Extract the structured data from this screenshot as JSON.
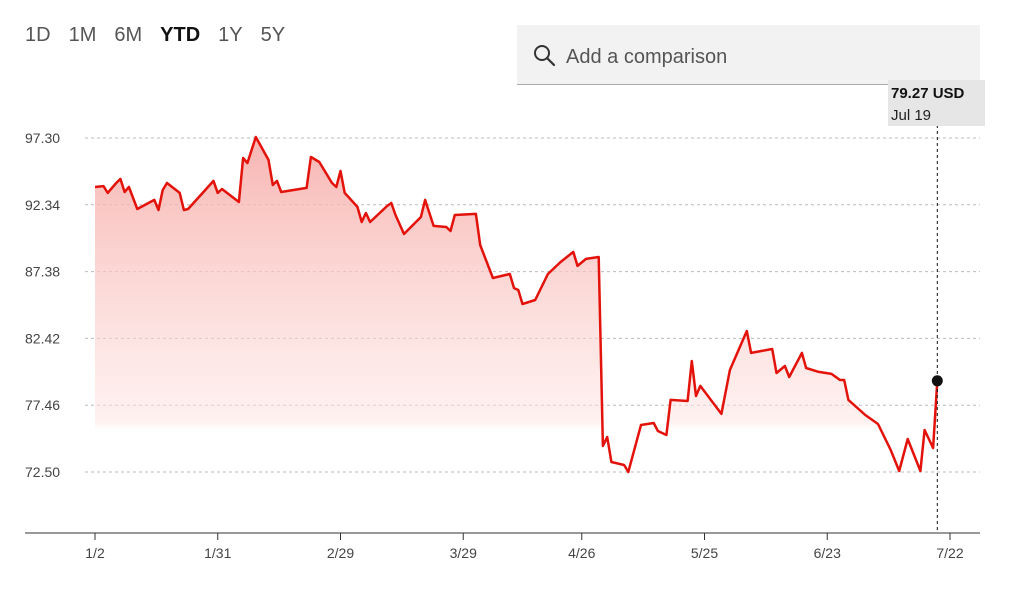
{
  "controls": {
    "ranges": [
      "1D",
      "1M",
      "6M",
      "YTD",
      "1Y",
      "5Y"
    ],
    "selected": "YTD",
    "search_placeholder": "Add a comparison"
  },
  "chart_data": {
    "type": "area",
    "color": "#e3120b",
    "x": [
      "1/2",
      "1/4",
      "1/5",
      "1/7",
      "1/8",
      "1/9",
      "1/10",
      "1/12",
      "1/16",
      "1/17",
      "1/18",
      "1/19",
      "1/22",
      "1/23",
      "1/24",
      "1/30",
      "1/31",
      "2/1",
      "2/5",
      "2/6",
      "2/7",
      "2/9",
      "2/12",
      "2/13",
      "2/14",
      "2/15",
      "2/21",
      "2/22",
      "2/24",
      "2/27",
      "2/28",
      "2/29",
      "3/1",
      "3/4",
      "3/5",
      "3/6",
      "3/7",
      "3/11",
      "3/12",
      "3/13",
      "3/15",
      "3/19",
      "3/20",
      "3/22",
      "3/25",
      "3/26",
      "3/27",
      "4/1",
      "4/2",
      "4/5",
      "4/9",
      "4/10",
      "4/11",
      "4/12",
      "4/15",
      "4/18",
      "4/21",
      "4/24",
      "4/25",
      "4/27",
      "4/30",
      "5/1",
      "5/2",
      "5/3",
      "5/6",
      "5/7",
      "5/10",
      "5/13",
      "5/14",
      "5/16",
      "5/17",
      "5/21",
      "5/22",
      "5/23",
      "5/24",
      "5/29",
      "5/31",
      "6/4",
      "6/5",
      "6/10",
      "6/11",
      "6/13",
      "6/14",
      "6/17",
      "6/18",
      "6/21",
      "6/24",
      "6/26",
      "6/27",
      "6/28",
      "7/2",
      "7/5",
      "7/8",
      "7/10",
      "7/12",
      "7/15",
      "7/16",
      "7/18",
      "7/19"
    ],
    "values": [
      93.66,
      93.73,
      93.22,
      93.96,
      94.26,
      93.29,
      93.66,
      92.03,
      92.7,
      91.95,
      93.44,
      93.96,
      93.22,
      91.95,
      92.03,
      94.11,
      93.22,
      93.51,
      92.55,
      95.81,
      95.44,
      97.37,
      95.67,
      93.81,
      94.11,
      93.29,
      93.59,
      95.89,
      95.52,
      93.96,
      93.66,
      94.85,
      93.22,
      92.18,
      91.06,
      91.73,
      91.06,
      92.25,
      92.47,
      91.58,
      90.17,
      91.43,
      92.7,
      90.77,
      90.69,
      90.39,
      91.58,
      91.66,
      89.35,
      86.9,
      87.2,
      86.16,
      86.01,
      84.97,
      85.27,
      87.2,
      88.09,
      88.84,
      87.8,
      88.32,
      88.46,
      74.43,
      75.1,
      73.24,
      73.02,
      72.5,
      75.99,
      76.14,
      75.54,
      75.25,
      77.85,
      77.77,
      80.74,
      78.14,
      78.89,
      76.81,
      80.07,
      82.97,
      81.34,
      81.63,
      79.85,
      80.37,
      79.55,
      81.34,
      80.22,
      79.93,
      79.78,
      79.33,
      79.33,
      77.85,
      76.73,
      76.06,
      74.13,
      72.57,
      74.95,
      72.57,
      75.62,
      74.28,
      79.27
    ],
    "ylim": [
      67.97,
      100.12
    ],
    "yticks": [
      {
        "value": 97.3,
        "label": "97.30"
      },
      92.34,
      87.38,
      82.42,
      77.46,
      {
        "value": 72.5,
        "label": "72.50"
      }
    ],
    "xticks": [
      "1/2",
      "1/31",
      "2/29",
      "3/29",
      "4/26",
      "5/25",
      "6/23",
      "7/22"
    ],
    "grid": true,
    "tooltip": {
      "label": "79.27 USD",
      "date": "Jul 19"
    }
  }
}
